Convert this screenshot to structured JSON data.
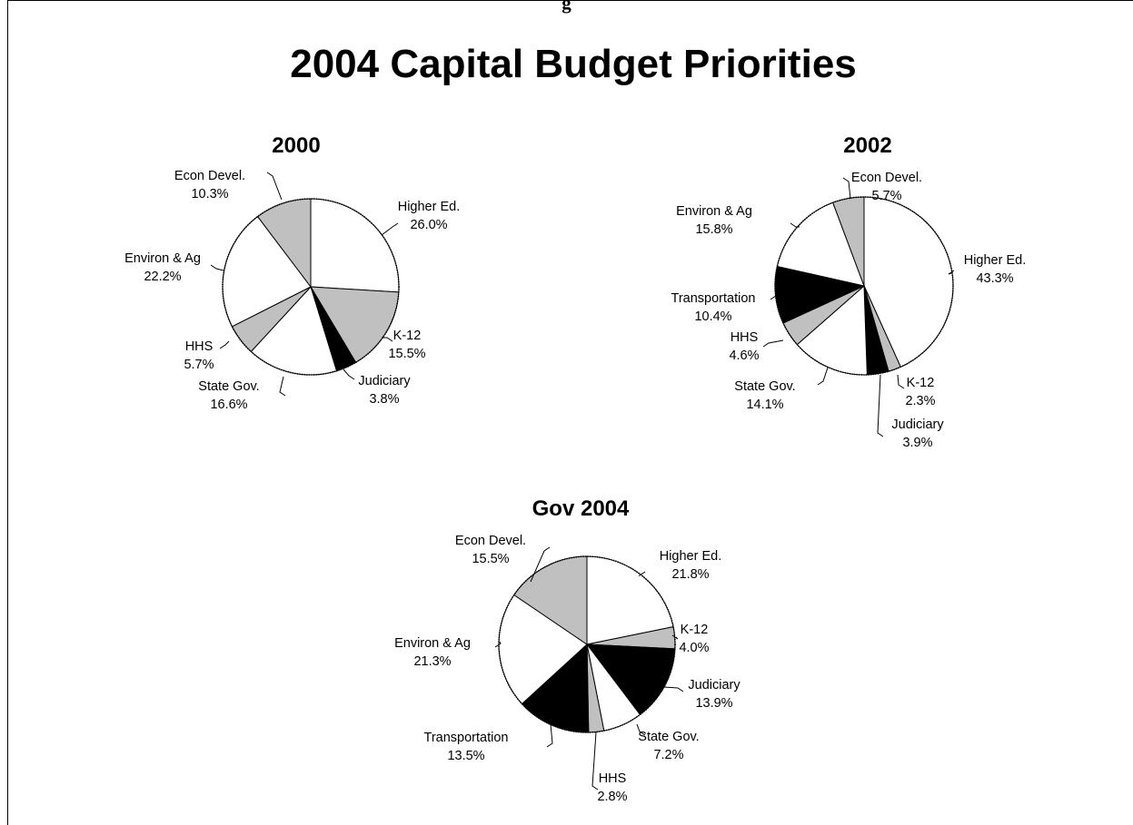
{
  "page": {
    "heading_fragment": "g"
  },
  "chart_data": [
    {
      "type": "pie",
      "title": "2000",
      "slices": [
        {
          "label": "Higher Ed.",
          "pct": "26.0%",
          "value": 26.0,
          "fill": "#ffffff"
        },
        {
          "label": "K-12",
          "pct": "15.5%",
          "value": 15.5,
          "fill": "#c0c0c0"
        },
        {
          "label": "Judiciary",
          "pct": "3.8%",
          "value": 3.8,
          "fill": "#000000"
        },
        {
          "label": "State Gov.",
          "pct": "16.6%",
          "value": 16.6,
          "fill": "#ffffff"
        },
        {
          "label": "HHS",
          "pct": "5.7%",
          "value": 5.7,
          "fill": "#c0c0c0"
        },
        {
          "label": "Environ & Ag",
          "pct": "22.2%",
          "value": 22.2,
          "fill": "#ffffff"
        },
        {
          "label": "Econ Devel.",
          "pct": "10.3%",
          "value": 10.3,
          "fill": "#c0c0c0"
        }
      ]
    },
    {
      "type": "pie",
      "title": "2002",
      "slices": [
        {
          "label": "Higher Ed.",
          "pct": "43.3%",
          "value": 43.3,
          "fill": "#ffffff"
        },
        {
          "label": "K-12",
          "pct": "2.3%",
          "value": 2.3,
          "fill": "#c0c0c0"
        },
        {
          "label": "Judiciary",
          "pct": "3.9%",
          "value": 3.9,
          "fill": "#000000"
        },
        {
          "label": "State Gov.",
          "pct": "14.1%",
          "value": 14.1,
          "fill": "#ffffff"
        },
        {
          "label": "HHS",
          "pct": "4.6%",
          "value": 4.6,
          "fill": "#c0c0c0"
        },
        {
          "label": "Transportation",
          "pct": "10.4%",
          "value": 10.4,
          "fill": "#000000"
        },
        {
          "label": "Environ & Ag",
          "pct": "15.8%",
          "value": 15.8,
          "fill": "#ffffff"
        },
        {
          "label": "Econ Devel.",
          "pct": "5.7%",
          "value": 5.7,
          "fill": "#c0c0c0"
        }
      ]
    },
    {
      "type": "pie",
      "title": "Gov 2004",
      "slices": [
        {
          "label": "Higher Ed.",
          "pct": "21.8%",
          "value": 21.8,
          "fill": "#ffffff"
        },
        {
          "label": "K-12",
          "pct": "4.0%",
          "value": 4.0,
          "fill": "#c0c0c0"
        },
        {
          "label": "Judiciary",
          "pct": "13.9%",
          "value": 13.9,
          "fill": "#000000"
        },
        {
          "label": "State Gov.",
          "pct": "7.2%",
          "value": 7.2,
          "fill": "#ffffff"
        },
        {
          "label": "HHS",
          "pct": "2.8%",
          "value": 2.8,
          "fill": "#c0c0c0"
        },
        {
          "label": "Transportation",
          "pct": "13.5%",
          "value": 13.5,
          "fill": "#000000"
        },
        {
          "label": "Environ & Ag",
          "pct": "21.3%",
          "value": 21.3,
          "fill": "#ffffff"
        },
        {
          "label": "Econ Devel.",
          "pct": "15.5%",
          "value": 15.5,
          "fill": "#c0c0c0"
        }
      ]
    }
  ],
  "main_title": "2004 Capital Budget Priorities"
}
